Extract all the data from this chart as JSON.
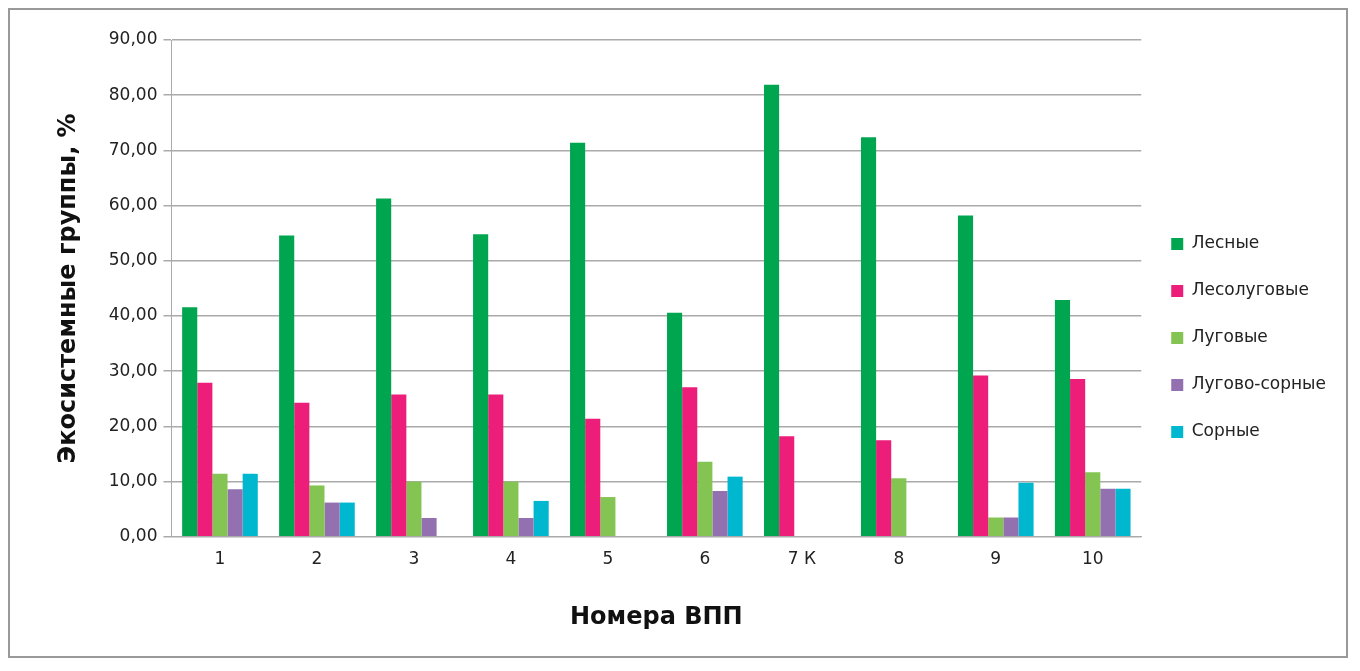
{
  "chart_data": {
    "type": "bar",
    "xlabel": "Номера ВПП",
    "ylabel": "Экосистемные группы, %",
    "categories": [
      "1",
      "2",
      "3",
      "4",
      "5",
      "6",
      "7 К",
      "8",
      "9",
      "10"
    ],
    "series": [
      {
        "name": "Лесные",
        "color": "#00a550",
        "values": [
          41.6,
          54.6,
          61.3,
          54.8,
          71.4,
          40.6,
          81.9,
          72.4,
          58.2,
          42.9
        ]
      },
      {
        "name": "Лесолуговые",
        "color": "#ed1e79",
        "values": [
          27.9,
          24.3,
          25.8,
          25.8,
          21.4,
          27.1,
          18.2,
          17.5,
          29.2,
          28.6
        ]
      },
      {
        "name": "Луговые",
        "color": "#84c452",
        "values": [
          11.4,
          9.3,
          10.0,
          10.0,
          7.2,
          13.6,
          0,
          10.6,
          3.5,
          11.7
        ]
      },
      {
        "name": "Лугово-сорные",
        "color": "#9370b0",
        "values": [
          8.6,
          6.2,
          3.4,
          3.4,
          0,
          8.3,
          0,
          0,
          3.5,
          8.7
        ]
      },
      {
        "name": "Сорные",
        "color": "#00b7d0",
        "values": [
          11.4,
          6.2,
          0,
          6.5,
          0,
          10.9,
          0,
          0,
          9.8,
          8.7
        ]
      }
    ],
    "ylim": [
      0,
      90
    ],
    "yticks": [
      {
        "value": 0,
        "label": "0,00"
      },
      {
        "value": 10,
        "label": "10,00"
      },
      {
        "value": 20,
        "label": "20,00"
      },
      {
        "value": 30,
        "label": "30,00"
      },
      {
        "value": 40,
        "label": "40,00"
      },
      {
        "value": 50,
        "label": "50,00"
      },
      {
        "value": 60,
        "label": "60,00"
      },
      {
        "value": 70,
        "label": "70,00"
      },
      {
        "value": 80,
        "label": "80,00"
      },
      {
        "value": 90,
        "label": "90,00"
      }
    ],
    "grid": "y",
    "legend": "right"
  }
}
